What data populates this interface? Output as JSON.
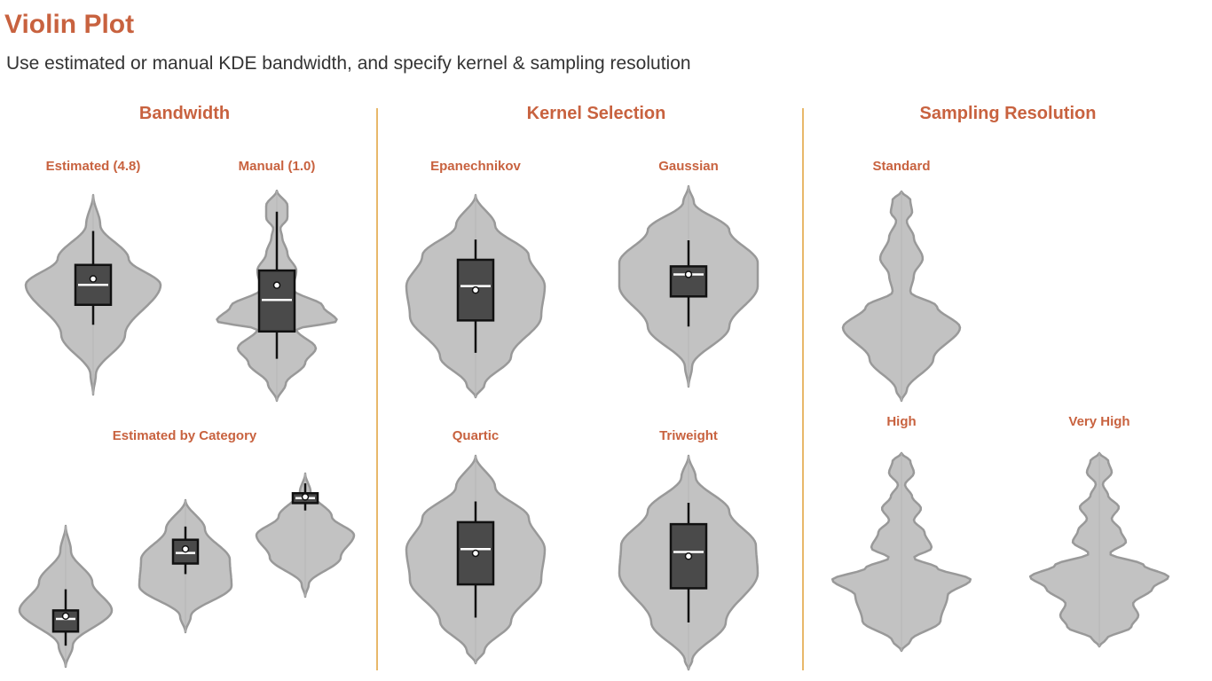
{
  "title": "Violin Plot",
  "subtitle": "Use estimated or manual KDE bandwidth, and specify kernel & sampling resolution",
  "colors": {
    "accent": "#c8623f",
    "divider": "#e8b86a",
    "violin_fill": "#c2c2c2",
    "violin_stroke": "#999999",
    "box_fill": "#4a4a4a",
    "box_stroke": "#111111",
    "median": "#ffffff"
  },
  "chart_data": {
    "type": "violin",
    "sections": [
      {
        "title": "Bandwidth",
        "panels": [
          {
            "title": "Estimated (4.8)",
            "violins": [
              {
                "box": {
                  "whisker_low": 0.35,
                  "q1": 0.45,
                  "median": 0.55,
                  "mean": 0.58,
                  "q3": 0.65,
                  "whisker_high": 0.82
                }
              }
            ]
          },
          {
            "title": "Manual (1.0)",
            "violins": [
              {
                "box": {
                  "whisker_low": 0.2,
                  "q1": 0.33,
                  "median": 0.48,
                  "mean": 0.55,
                  "q3": 0.62,
                  "whisker_high": 0.9
                }
              }
            ]
          },
          {
            "title": "Estimated by Category",
            "violins": [
              {
                "box": {
                  "whisker_low": 0.15,
                  "q1": 0.25,
                  "median": 0.34,
                  "mean": 0.36,
                  "q3": 0.4,
                  "whisker_high": 0.55
                }
              },
              {
                "box": {
                  "whisker_low": 0.44,
                  "q1": 0.52,
                  "median": 0.6,
                  "mean": 0.63,
                  "q3": 0.7,
                  "whisker_high": 0.8
                }
              },
              {
                "box": {
                  "whisker_low": 0.7,
                  "q1": 0.76,
                  "median": 0.8,
                  "mean": 0.81,
                  "q3": 0.84,
                  "whisker_high": 0.92
                }
              }
            ]
          }
        ]
      },
      {
        "title": "Kernel Selection",
        "panels": [
          {
            "title": "Epanechnikov",
            "violins": [
              {
                "box": {
                  "whisker_low": 0.22,
                  "q1": 0.38,
                  "median": 0.55,
                  "mean": 0.53,
                  "q3": 0.68,
                  "whisker_high": 0.78
                }
              }
            ]
          },
          {
            "title": "Gaussian",
            "violins": [
              {
                "box": {
                  "whisker_low": 0.3,
                  "q1": 0.45,
                  "median": 0.56,
                  "mean": 0.56,
                  "q3": 0.6,
                  "whisker_high": 0.73
                }
              }
            ]
          },
          {
            "title": "Quartic",
            "violins": [
              {
                "box": {
                  "whisker_low": 0.22,
                  "q1": 0.38,
                  "median": 0.55,
                  "mean": 0.53,
                  "q3": 0.68,
                  "whisker_high": 0.78
                }
              }
            ]
          },
          {
            "title": "Triweight",
            "violins": [
              {
                "box": {
                  "whisker_low": 0.22,
                  "q1": 0.38,
                  "median": 0.55,
                  "mean": 0.53,
                  "q3": 0.68,
                  "whisker_high": 0.78
                }
              }
            ]
          }
        ]
      },
      {
        "title": "Sampling Resolution",
        "panels": [
          {
            "title": "Standard",
            "violins": [
              {
                "box": null
              }
            ]
          },
          {
            "title": "High",
            "violins": [
              {
                "box": null
              }
            ]
          },
          {
            "title": "Very High",
            "violins": [
              {
                "box": null
              }
            ]
          }
        ]
      }
    ]
  }
}
